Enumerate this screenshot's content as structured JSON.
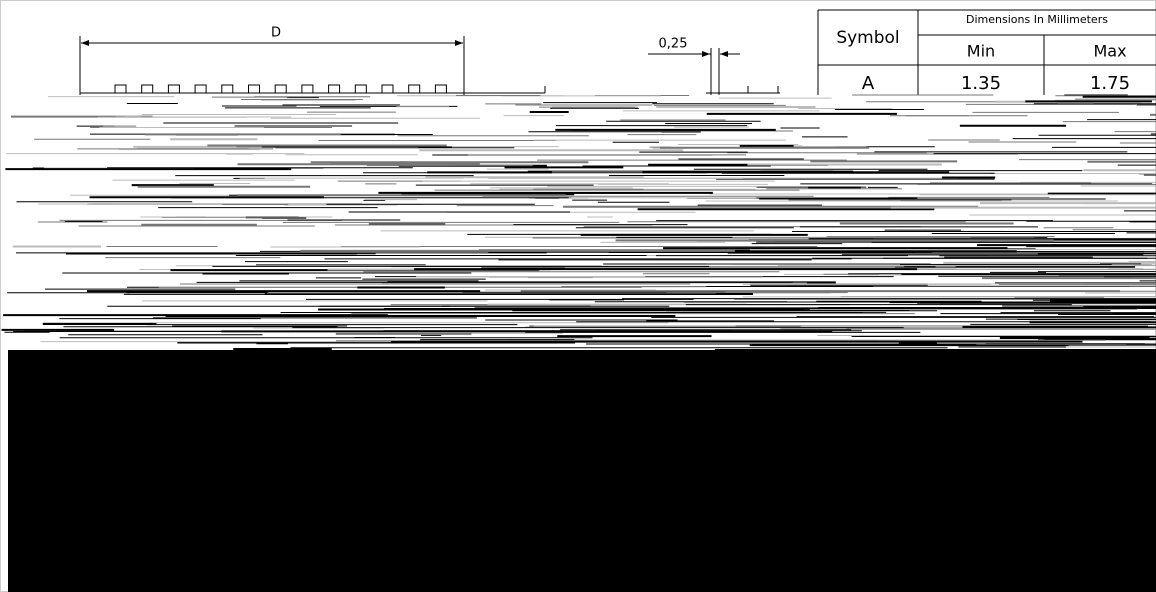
{
  "drawing": {
    "dimension_label": "D",
    "pitch_label": "0,25"
  },
  "table": {
    "header": {
      "symbol": "Symbol",
      "group": "Dimensions In Millimeters",
      "min": "Min",
      "max": "Max"
    },
    "rows": [
      [
        "A",
        "1.35",
        "1.75"
      ]
    ]
  }
}
